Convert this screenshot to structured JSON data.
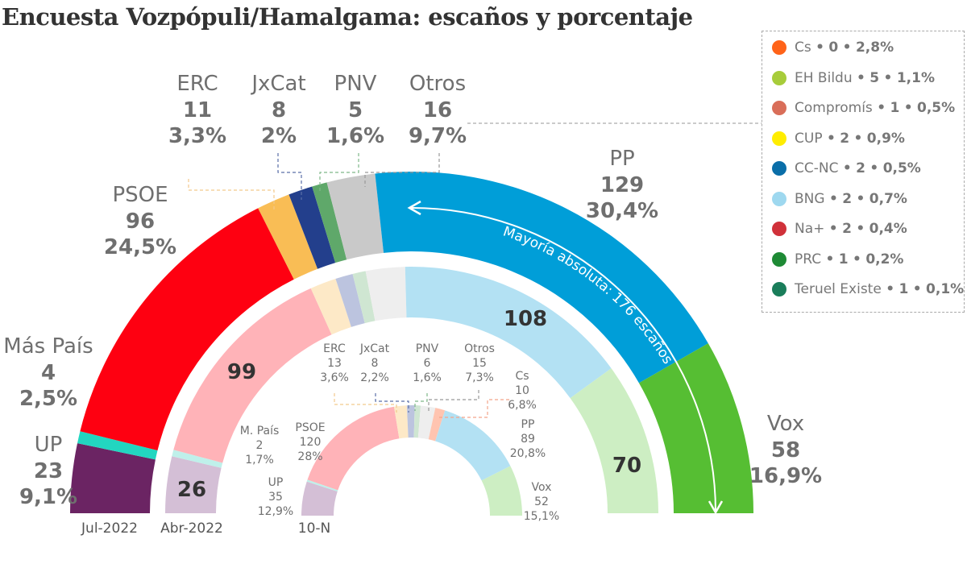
{
  "title": "Encuesta Vozpópuli/Hamalgama: escaños y porcentaje",
  "majority_label": "Mayoría absoluta: 176 escaños",
  "chart_data": [
    {
      "type": "pie",
      "variant": "semicircle",
      "caption": "Jul-2022",
      "ring": "outer",
      "total_seats": 350,
      "segments": [
        {
          "party": "UP",
          "seats": 23,
          "pct": "9,1%",
          "color": "#6b2463"
        },
        {
          "party": "Más País",
          "seats": 4,
          "pct": "2,5%",
          "color": "#22d6c0"
        },
        {
          "party": "PSOE",
          "seats": 96,
          "pct": "24,5%",
          "color": "#fe0011"
        },
        {
          "party": "ERC",
          "seats": 11,
          "pct": "3,3%",
          "color": "#f9bd55"
        },
        {
          "party": "JxCat",
          "seats": 8,
          "pct": "2%",
          "color": "#233f8c"
        },
        {
          "party": "PNV",
          "seats": 5,
          "pct": "1,6%",
          "color": "#5fa86a"
        },
        {
          "party": "Otros",
          "seats": 16,
          "pct": "9,7%",
          "color": "#c9c9c9"
        },
        {
          "party": "PP",
          "seats": 129,
          "pct": "30,4%",
          "color": "#009ed8"
        },
        {
          "party": "Vox",
          "seats": 58,
          "pct": "16,9%",
          "color": "#56be33"
        }
      ]
    },
    {
      "type": "pie",
      "variant": "semicircle",
      "caption": "Abr-2022",
      "ring": "middle",
      "total_seats": 350,
      "segments": [
        {
          "party": "UP",
          "seats": 26,
          "color": "#d4bfd6"
        },
        {
          "party": "Más País",
          "seats": 3,
          "color": "#bff0ea"
        },
        {
          "party": "PSOE",
          "seats": 99,
          "color": "#ffb3b8"
        },
        {
          "party": "ERC",
          "seats": 12,
          "color": "#fde9c7"
        },
        {
          "party": "JxCat",
          "seats": 8,
          "color": "#bcc4df"
        },
        {
          "party": "PNV",
          "seats": 6,
          "color": "#cfe6d2"
        },
        {
          "party": "Otros",
          "seats": 18,
          "color": "#eeeeee"
        },
        {
          "party": "PP",
          "seats": 108,
          "color": "#b3e1f3"
        },
        {
          "party": "Vox",
          "seats": 70,
          "color": "#cdeec3"
        }
      ]
    },
    {
      "type": "pie",
      "variant": "semicircle",
      "caption": "10-N",
      "ring": "inner",
      "total_seats": 350,
      "segments": [
        {
          "party": "UP",
          "seats": 35,
          "pct": "12,9%",
          "color": "#d4bfd6"
        },
        {
          "party": "M. País",
          "seats": 2,
          "pct": "1,7%",
          "color": "#bff0ea"
        },
        {
          "party": "PSOE",
          "seats": 120,
          "pct": "28%",
          "color": "#ffb3b8"
        },
        {
          "party": "ERC",
          "seats": 13,
          "pct": "3,6%",
          "color": "#fde9c7"
        },
        {
          "party": "JxCat",
          "seats": 8,
          "pct": "2,2%",
          "color": "#bcc4df"
        },
        {
          "party": "PNV",
          "seats": 6,
          "pct": "1,6%",
          "color": "#cfe6d2"
        },
        {
          "party": "Otros",
          "seats": 15,
          "pct": "7,3%",
          "color": "#eeeeee"
        },
        {
          "party": "Cs",
          "seats": 10,
          "pct": "6,8%",
          "color": "#ffc4b0"
        },
        {
          "party": "PP",
          "seats": 89,
          "pct": "20,8%",
          "color": "#b3e1f3"
        },
        {
          "party": "Vox",
          "seats": 52,
          "pct": "15,1%",
          "color": "#cdeec3"
        }
      ]
    }
  ],
  "legend": [
    {
      "party": "Cs",
      "seats": "0",
      "pct": "2,8%",
      "color": "#ff6319"
    },
    {
      "party": "EH Bildu",
      "seats": "5",
      "pct": "1,1%",
      "color": "#a7cc3a"
    },
    {
      "party": "Compromís",
      "seats": "1",
      "pct": "0,5%",
      "color": "#d96e59"
    },
    {
      "party": "CUP",
      "seats": "2",
      "pct": "0,9%",
      "color": "#ffed00"
    },
    {
      "party": "CC-NC",
      "seats": "2",
      "pct": "0,5%",
      "color": "#0a6ea8"
    },
    {
      "party": "BNG",
      "seats": "2",
      "pct": "0,7%",
      "color": "#9ed8ef"
    },
    {
      "party": "Na+",
      "seats": "2",
      "pct": "0,4%",
      "color": "#d0313a"
    },
    {
      "party": "PRC",
      "seats": "1",
      "pct": "0,2%",
      "color": "#1e8a35"
    },
    {
      "party": "Teruel Existe",
      "seats": "1",
      "pct": "0,1%",
      "color": "#1a7d5a"
    }
  ],
  "separator": "•"
}
